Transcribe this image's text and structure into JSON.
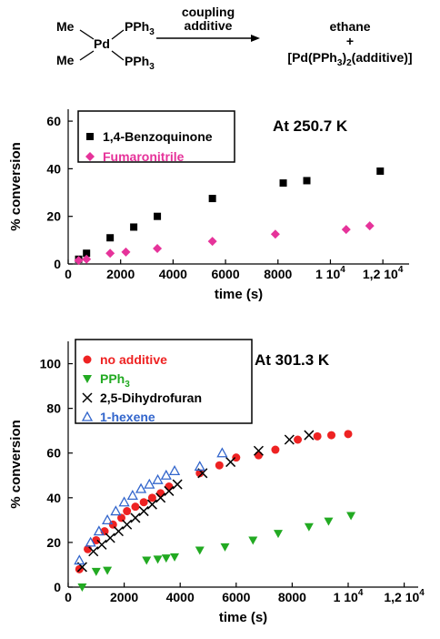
{
  "scheme": {
    "reactant": {
      "metal": "Pd",
      "ligand1": "Me",
      "ligand2": "Me",
      "ligand3": "PPh",
      "ligand4": "PPh",
      "ligand_sub": "3"
    },
    "arrow_top": "coupling",
    "arrow_bottom": "additive",
    "product1": "ethane",
    "plus": "+",
    "product2_pre": "[Pd(PPh",
    "product2_sub1": "3",
    "product2_mid": ")",
    "product2_sub2": "2",
    "product2_post": "(additive)]"
  },
  "chart_data": [
    {
      "type": "scatter",
      "annotation": "At 250.7 K",
      "xlabel": "time (s)",
      "ylabel": "% conversion",
      "xlim": [
        0,
        13000
      ],
      "ylim": [
        0,
        65
      ],
      "x_ticks": [
        0,
        2000,
        4000,
        6000,
        8000,
        10000,
        12000
      ],
      "x_tick_labels": [
        "0",
        "2000",
        "4000",
        "6000",
        "8000",
        "1 10",
        "1,2 10"
      ],
      "x_tick_exponents": [
        "",
        "",
        "",
        "",
        "",
        "4",
        "4"
      ],
      "y_ticks": [
        0,
        20,
        40,
        60
      ],
      "y_tick_labels": [
        "0",
        "20",
        "40",
        "60"
      ],
      "grid": false,
      "legend_position": "top-left",
      "series": [
        {
          "name": "1,4-Benzoquinone",
          "color": "#000000",
          "marker": "square",
          "x": [
            400,
            700,
            1600,
            2500,
            3400,
            5500,
            8200,
            9100,
            11900
          ],
          "y": [
            2,
            4.5,
            11,
            15.5,
            20,
            27.5,
            34,
            35,
            39
          ]
        },
        {
          "name": "Fumaronitrile",
          "color": "#e6339a",
          "marker": "diamond",
          "x": [
            400,
            700,
            1600,
            2200,
            3400,
            5500,
            7900,
            10600,
            11500
          ],
          "y": [
            1.5,
            2,
            4.5,
            5,
            6.5,
            9.5,
            12.5,
            14.5,
            16
          ]
        }
      ]
    },
    {
      "type": "scatter",
      "annotation": "At 301.3 K",
      "xlabel": "time (s)",
      "ylabel": "% conversion",
      "xlim": [
        0,
        12500
      ],
      "ylim": [
        0,
        110
      ],
      "x_ticks": [
        0,
        2000,
        4000,
        6000,
        8000,
        10000,
        12000
      ],
      "x_tick_labels": [
        "0",
        "2000",
        "4000",
        "6000",
        "8000",
        "1 10",
        "1,2 10"
      ],
      "x_tick_exponents": [
        "",
        "",
        "",
        "",
        "",
        "4",
        "4"
      ],
      "y_ticks": [
        0,
        20,
        40,
        60,
        80,
        100
      ],
      "y_tick_labels": [
        "0",
        "20",
        "40",
        "60",
        "80",
        "100"
      ],
      "grid": false,
      "legend_position": "top-left",
      "series": [
        {
          "name": "no additive",
          "color": "#ee2222",
          "marker": "circle",
          "x": [
            400,
            700,
            1000,
            1300,
            1600,
            1900,
            2100,
            2400,
            2700,
            3000,
            3300,
            3600,
            4700,
            5400,
            6000,
            6800,
            7400,
            8200,
            8900,
            9400,
            10000
          ],
          "y": [
            8,
            17,
            21,
            25,
            28,
            31,
            34,
            36,
            38,
            40,
            42,
            45,
            51,
            54.5,
            58,
            59,
            61.5,
            66,
            67.5,
            68,
            68.5
          ]
        },
        {
          "name": "PPh",
          "name_sub": "3",
          "color": "#22aa22",
          "marker": "triangle-down",
          "x": [
            500,
            1000,
            1400,
            2800,
            3200,
            3500,
            3800,
            4700,
            5600,
            6600,
            7500,
            8600,
            9300,
            10100
          ],
          "y": [
            0,
            7,
            7.5,
            12,
            12.5,
            13,
            13.5,
            16.5,
            18,
            21,
            24,
            27,
            29.5,
            32
          ]
        },
        {
          "name": "2,5-Dihydrofuran",
          "color": "#000000",
          "marker": "x",
          "x": [
            500,
            900,
            1200,
            1500,
            1800,
            2100,
            2400,
            2700,
            3000,
            3300,
            3600,
            3900,
            4800,
            5800,
            6800,
            7900,
            8600
          ],
          "y": [
            9,
            16,
            19,
            22,
            25,
            28,
            31,
            34,
            37,
            40,
            43,
            46,
            51,
            56,
            61,
            66,
            68
          ]
        },
        {
          "name": "1-hexene",
          "color": "#3366cc",
          "marker": "triangle-up",
          "x": [
            400,
            800,
            1100,
            1400,
            1700,
            2000,
            2300,
            2600,
            2900,
            3200,
            3500,
            3800,
            4700,
            5500
          ],
          "y": [
            12,
            20,
            25,
            30,
            34,
            38,
            41,
            44,
            46,
            48,
            50,
            52,
            54,
            60
          ]
        }
      ]
    }
  ]
}
